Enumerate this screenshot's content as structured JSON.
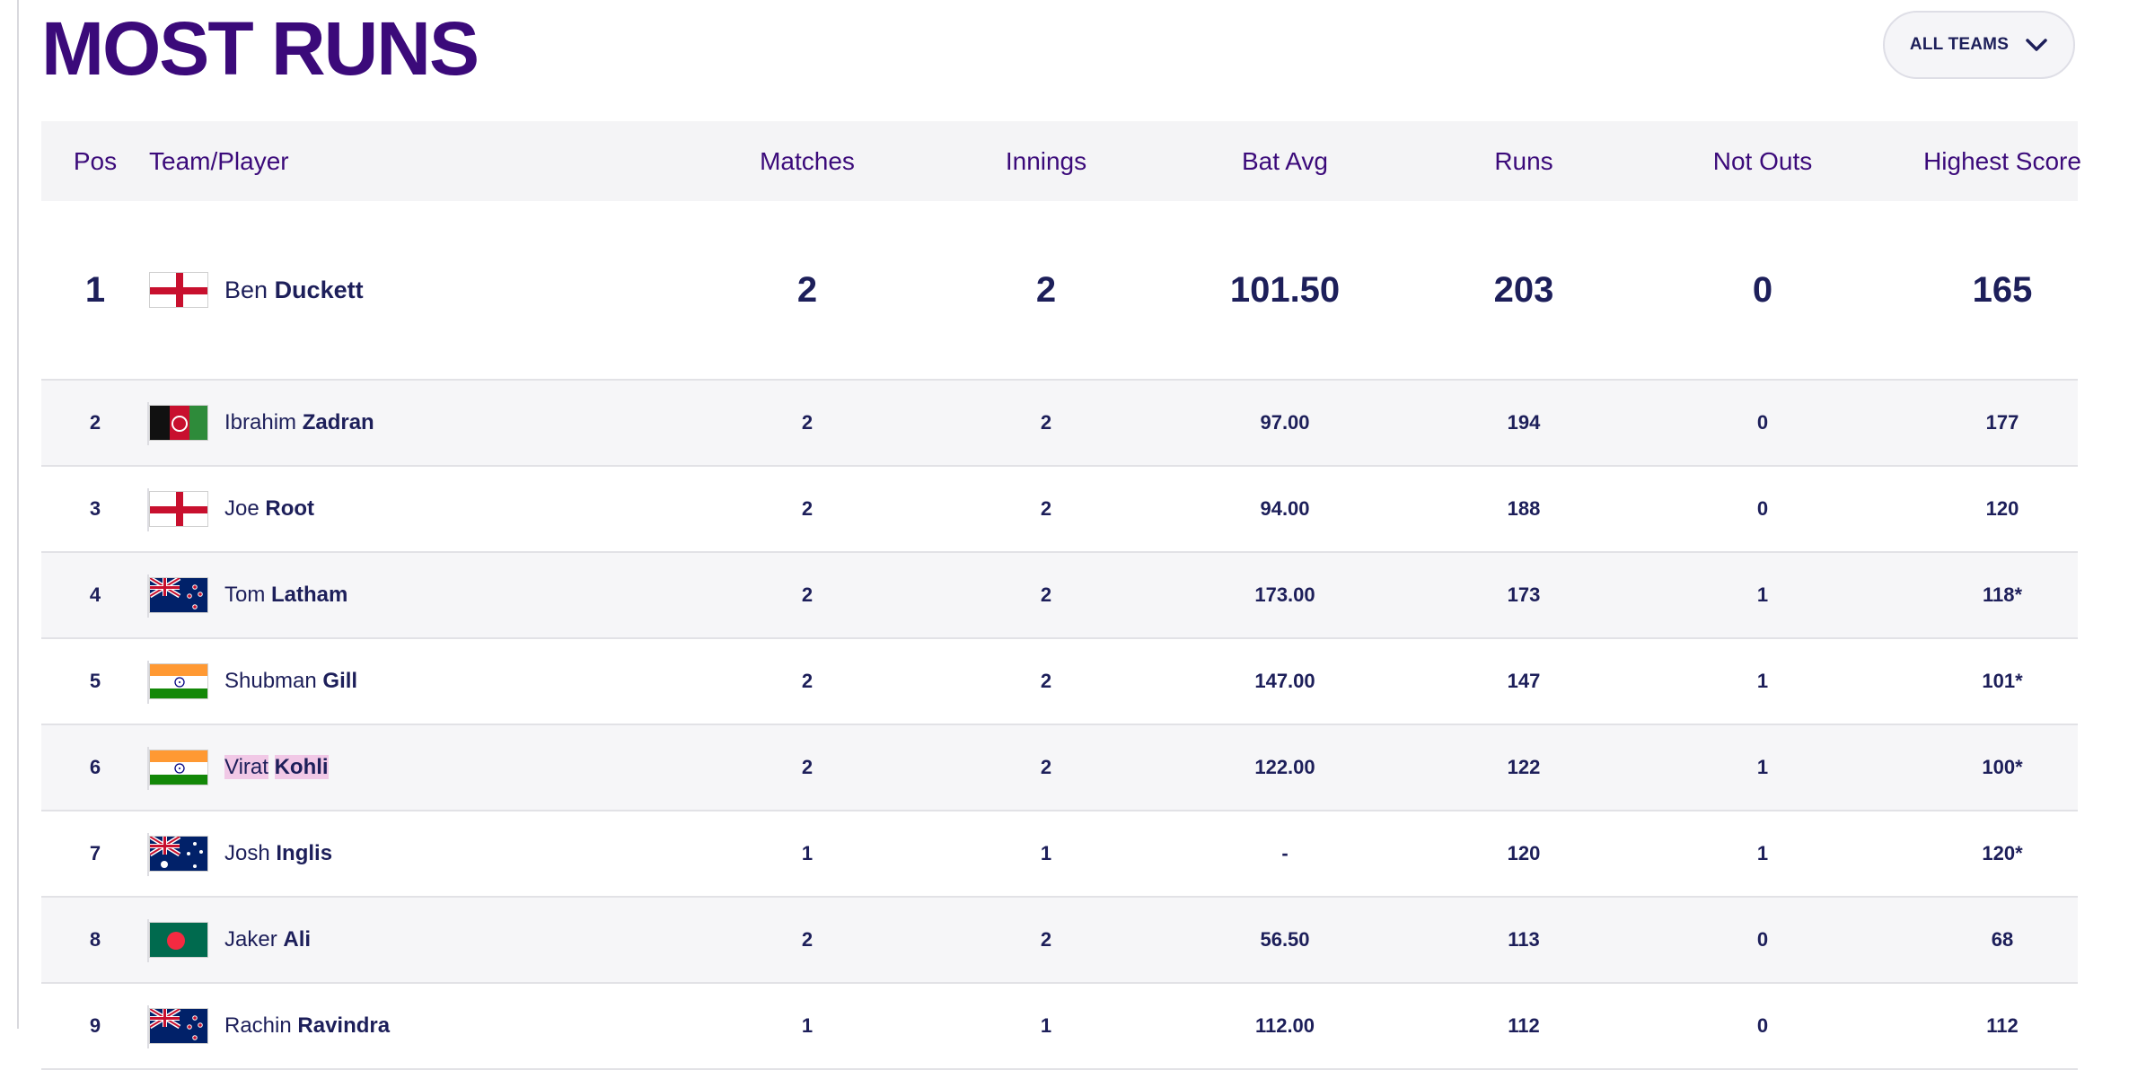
{
  "page": {
    "title": "MOST RUNS"
  },
  "filter": {
    "label": "ALL TEAMS",
    "icon": "chevron-down-icon"
  },
  "table": {
    "headers": [
      "Pos",
      "Team/Player",
      "Matches",
      "Innings",
      "Bat Avg",
      "Runs",
      "Not Outs",
      "Highest Score"
    ],
    "rows": [
      {
        "pos": "1",
        "flag": "england",
        "first": "Ben",
        "last": "Duckett",
        "matches": "2",
        "innings": "2",
        "avg": "101.50",
        "runs": "203",
        "not_outs": "0",
        "hs": "165"
      },
      {
        "pos": "2",
        "flag": "afghanistan",
        "first": "Ibrahim",
        "last": "Zadran",
        "matches": "2",
        "innings": "2",
        "avg": "97.00",
        "runs": "194",
        "not_outs": "0",
        "hs": "177"
      },
      {
        "pos": "3",
        "flag": "england",
        "first": "Joe",
        "last": "Root",
        "matches": "2",
        "innings": "2",
        "avg": "94.00",
        "runs": "188",
        "not_outs": "0",
        "hs": "120"
      },
      {
        "pos": "4",
        "flag": "new-zealand",
        "first": "Tom",
        "last": "Latham",
        "matches": "2",
        "innings": "2",
        "avg": "173.00",
        "runs": "173",
        "not_outs": "1",
        "hs": "118*"
      },
      {
        "pos": "5",
        "flag": "india",
        "first": "Shubman",
        "last": "Gill",
        "matches": "2",
        "innings": "2",
        "avg": "147.00",
        "runs": "147",
        "not_outs": "1",
        "hs": "101*"
      },
      {
        "pos": "6",
        "flag": "india",
        "first": "Virat",
        "last": "Kohli",
        "matches": "2",
        "innings": "2",
        "avg": "122.00",
        "runs": "122",
        "not_outs": "1",
        "hs": "100*"
      },
      {
        "pos": "7",
        "flag": "australia",
        "first": "Josh",
        "last": "Inglis",
        "matches": "1",
        "innings": "1",
        "avg": "-",
        "runs": "120",
        "not_outs": "1",
        "hs": "120*"
      },
      {
        "pos": "8",
        "flag": "bangladesh",
        "first": "Jaker",
        "last": "Ali",
        "matches": "2",
        "innings": "2",
        "avg": "56.50",
        "runs": "113",
        "not_outs": "0",
        "hs": "68"
      },
      {
        "pos": "9",
        "flag": "new-zealand",
        "first": "Rachin",
        "last": "Ravindra",
        "matches": "1",
        "innings": "1",
        "avg": "112.00",
        "runs": "112",
        "not_outs": "0",
        "hs": "112"
      }
    ]
  },
  "colors": {
    "title": "#3b0a7a",
    "text": "#1d1f5a",
    "header_bg": "#f4f4f6",
    "highlight": "#f1c8e6"
  }
}
